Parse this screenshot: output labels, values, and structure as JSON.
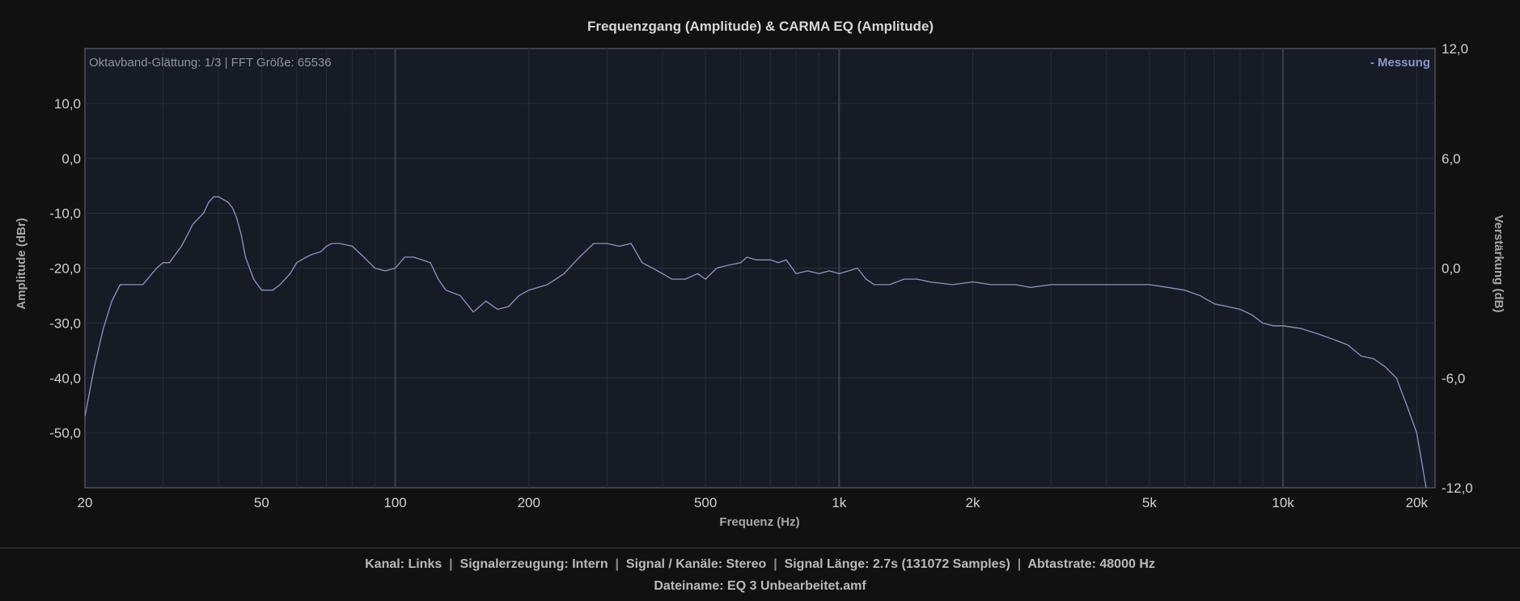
{
  "chart_data": {
    "type": "line",
    "title": "Frequenzgang (Amplitude) & CARMA EQ (Amplitude)",
    "annotation": "Oktavband-Glättung: 1/3 | FFT Größe: 65536",
    "xlabel": "Frequenz (Hz)",
    "ylabel": "Amplitude (dBr)",
    "y2label": "Verstärkung (dB)",
    "x_scale": "log",
    "xlim": [
      20,
      22000
    ],
    "ylim": [
      -60,
      20
    ],
    "y2lim": [
      -12,
      12
    ],
    "x_ticks": [
      20,
      50,
      100,
      200,
      500,
      1000,
      2000,
      5000,
      10000,
      20000
    ],
    "x_tick_labels": [
      "20",
      "50",
      "100",
      "200",
      "500",
      "1k",
      "2k",
      "5k",
      "10k",
      "20k"
    ],
    "y_ticks": [
      10,
      0,
      -10,
      -20,
      -30,
      -40,
      -50
    ],
    "y_tick_labels": [
      "10,0",
      "0,0",
      "-10,0",
      "-20,0",
      "-30,0",
      "-40,0",
      "-50,0"
    ],
    "y2_ticks": [
      12,
      6,
      0,
      -6,
      -12
    ],
    "y2_tick_labels": [
      "12,0",
      "6,0",
      "0,0",
      "-6,0",
      "-12,0"
    ],
    "grid": true,
    "legend_position": "top-right",
    "colors": {
      "line": "#8e96be",
      "legend": "#8d94c6",
      "plot_bg": "#161b26",
      "page_bg": "#111111",
      "grid": "#2b313c"
    },
    "series": [
      {
        "name": "- Messung",
        "x": [
          20,
          21,
          22,
          23,
          24,
          25,
          27,
          29,
          30,
          31,
          33,
          34,
          35,
          37,
          38,
          39,
          40,
          41,
          42,
          43,
          44,
          45,
          46,
          48,
          50,
          53,
          55,
          58,
          60,
          63,
          65,
          68,
          70,
          72,
          75,
          80,
          85,
          90,
          95,
          100,
          105,
          110,
          115,
          120,
          125,
          130,
          140,
          150,
          160,
          170,
          180,
          190,
          200,
          210,
          220,
          230,
          240,
          260,
          280,
          300,
          320,
          340,
          360,
          380,
          400,
          420,
          450,
          480,
          500,
          530,
          560,
          600,
          620,
          650,
          700,
          730,
          760,
          800,
          850,
          900,
          950,
          1000,
          1050,
          1100,
          1150,
          1200,
          1300,
          1400,
          1500,
          1600,
          1800,
          2000,
          2200,
          2500,
          2700,
          3000,
          3300,
          3600,
          4000,
          4500,
          5000,
          5500,
          6000,
          6500,
          7000,
          7500,
          8000,
          8500,
          9000,
          9500,
          10000,
          11000,
          12000,
          13000,
          14000,
          15000,
          16000,
          17000,
          18000,
          19000,
          20000,
          20500,
          21000
        ],
        "y": [
          -47,
          -38,
          -31,
          -26,
          -23,
          -23,
          -23,
          -20,
          -19,
          -19,
          -16,
          -14,
          -12,
          -10,
          -8,
          -7,
          -7,
          -7.5,
          -8,
          -9,
          -11,
          -14,
          -18,
          -22,
          -24,
          -24,
          -23,
          -21,
          -19,
          -18,
          -17.5,
          -17,
          -16,
          -15.5,
          -15.5,
          -16,
          -18,
          -20,
          -20.5,
          -20,
          -18,
          -18,
          -18.5,
          -19,
          -22,
          -24,
          -25,
          -28,
          -26,
          -27.5,
          -27,
          -25,
          -24,
          -23.5,
          -23,
          -22,
          -21,
          -18,
          -15.5,
          -15.5,
          -16,
          -15.5,
          -19,
          -20,
          -21,
          -22,
          -22,
          -21,
          -22,
          -20,
          -19.5,
          -19,
          -18,
          -18.5,
          -18.5,
          -19,
          -18.5,
          -21,
          -20.5,
          -21,
          -20.5,
          -21,
          -20.5,
          -20,
          -22,
          -23,
          -23,
          -22,
          -22,
          -22.5,
          -23,
          -22.5,
          -23,
          -23,
          -23.5,
          -23,
          -23,
          -23,
          -23,
          -23,
          -23,
          -23.5,
          -24,
          -25,
          -26.5,
          -27,
          -27.5,
          -28.5,
          -30,
          -30.5,
          -30.5,
          -31,
          -32,
          -33,
          -34,
          -36,
          -36.5,
          -38,
          -40,
          -45,
          -50,
          -55,
          -60
        ]
      }
    ]
  },
  "footer": {
    "kanal": "Kanal: Links",
    "signalerzeugung": "Signalerzeugung: Intern",
    "signal_kanaele": "Signal / Kanäle: Stereo",
    "signal_laenge": "Signal Länge: 2.7s (131072 Samples)",
    "abtastrate": "Abtastrate: 48000 Hz",
    "sep": "|",
    "dateiname": "Dateiname: EQ 3 Unbearbeitet.amf"
  }
}
